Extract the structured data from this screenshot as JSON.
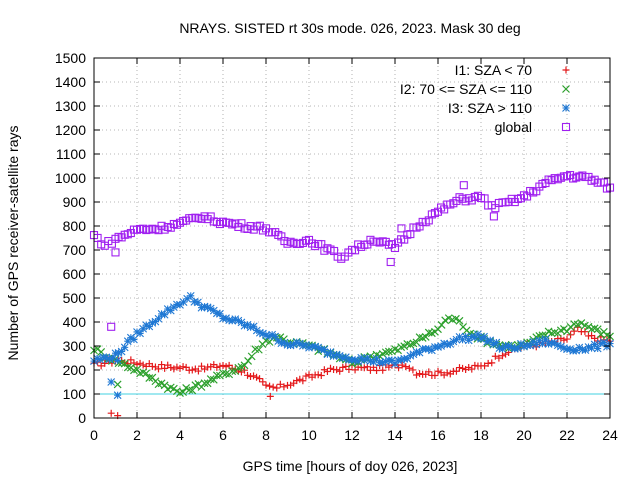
{
  "chart_data": {
    "type": "scatter",
    "title": "NRAYS. SISTED rt 30s mode. 026, 2023. Mask 30 deg",
    "xlabel": "GPS time [hours of doy 026, 2023]",
    "ylabel": "Number of GPS receiver-satellite rays",
    "xlim": [
      0,
      24
    ],
    "ylim": [
      0,
      1500
    ],
    "xticks": [
      0,
      2,
      4,
      6,
      8,
      10,
      12,
      14,
      16,
      18,
      20,
      22,
      24
    ],
    "yticks": [
      0,
      100,
      200,
      300,
      400,
      500,
      600,
      700,
      800,
      900,
      1000,
      1100,
      1200,
      1300,
      1400,
      1500
    ],
    "grid": true,
    "legend_position": "top-right",
    "reference_line": {
      "y": 100,
      "color": "#40d0e0"
    },
    "series": [
      {
        "name": "I1: SZA < 70",
        "marker": "plus",
        "color": "#e41a1c",
        "points": [
          [
            0,
            220
          ],
          [
            0.5,
            230
          ],
          [
            1,
            240
          ],
          [
            2,
            230
          ],
          [
            3,
            215
          ],
          [
            4,
            210
          ],
          [
            5,
            205
          ],
          [
            6,
            220
          ],
          [
            7,
            195
          ],
          [
            7.7,
            155
          ],
          [
            8,
            130
          ],
          [
            8.5,
            125
          ],
          [
            9,
            140
          ],
          [
            10,
            170
          ],
          [
            11,
            200
          ],
          [
            12,
            210
          ],
          [
            13,
            205
          ],
          [
            14,
            215
          ],
          [
            14.5,
            225
          ],
          [
            15,
            190
          ],
          [
            16,
            185
          ],
          [
            17,
            200
          ],
          [
            18,
            215
          ],
          [
            18.5,
            240
          ],
          [
            19,
            270
          ],
          [
            20,
            300
          ],
          [
            21,
            310
          ],
          [
            22,
            330
          ],
          [
            22.5,
            370
          ],
          [
            23,
            340
          ],
          [
            24,
            320
          ]
        ],
        "outliers": [
          [
            0.8,
            20
          ],
          [
            1.1,
            10
          ],
          [
            8.2,
            90
          ]
        ]
      },
      {
        "name": "I2: 70 <= SZA <= 110",
        "marker": "cross",
        "color": "#2ca02c",
        "points": [
          [
            0,
            290
          ],
          [
            0.5,
            260
          ],
          [
            1,
            240
          ],
          [
            2,
            200
          ],
          [
            3,
            150
          ],
          [
            4,
            105
          ],
          [
            5,
            140
          ],
          [
            6,
            180
          ],
          [
            7,
            220
          ],
          [
            7.5,
            280
          ],
          [
            8,
            320
          ],
          [
            8.5,
            340
          ],
          [
            9,
            320
          ],
          [
            10,
            300
          ],
          [
            11,
            270
          ],
          [
            12,
            230
          ],
          [
            13,
            260
          ],
          [
            14,
            280
          ],
          [
            15,
            320
          ],
          [
            16,
            370
          ],
          [
            16.5,
            420
          ],
          [
            17,
            400
          ],
          [
            17.5,
            360
          ],
          [
            18,
            330
          ],
          [
            19,
            300
          ],
          [
            20,
            300
          ],
          [
            21,
            350
          ],
          [
            22,
            370
          ],
          [
            22.5,
            400
          ],
          [
            23,
            380
          ],
          [
            24,
            340
          ]
        ],
        "outliers": [
          [
            1.1,
            140
          ]
        ]
      },
      {
        "name": "I3: SZA > 110",
        "marker": "star",
        "color": "#1f78d4",
        "points": [
          [
            0,
            240
          ],
          [
            1,
            260
          ],
          [
            2,
            350
          ],
          [
            3,
            420
          ],
          [
            4,
            480
          ],
          [
            4.5,
            500
          ],
          [
            5,
            470
          ],
          [
            6,
            420
          ],
          [
            7,
            390
          ],
          [
            8,
            350
          ],
          [
            9,
            310
          ],
          [
            10,
            300
          ],
          [
            11,
            270
          ],
          [
            12,
            250
          ],
          [
            13,
            240
          ],
          [
            14,
            230
          ],
          [
            15,
            270
          ],
          [
            16,
            300
          ],
          [
            17,
            330
          ],
          [
            18,
            340
          ],
          [
            19,
            290
          ],
          [
            20,
            300
          ],
          [
            21,
            320
          ],
          [
            22,
            290
          ],
          [
            23,
            290
          ],
          [
            24,
            310
          ]
        ],
        "outliers": [
          [
            0.8,
            150
          ],
          [
            1.1,
            95
          ],
          [
            1.1,
            240
          ]
        ]
      },
      {
        "name": "global",
        "marker": "square",
        "color": "#a020f0",
        "points": [
          [
            0,
            760
          ],
          [
            0.5,
            720
          ],
          [
            1,
            745
          ],
          [
            2,
            785
          ],
          [
            3,
            790
          ],
          [
            4,
            810
          ],
          [
            5,
            840
          ],
          [
            6,
            815
          ],
          [
            7,
            800
          ],
          [
            8,
            790
          ],
          [
            9,
            730
          ],
          [
            10,
            740
          ],
          [
            11,
            695
          ],
          [
            11.5,
            670
          ],
          [
            12,
            700
          ],
          [
            13,
            745
          ],
          [
            14,
            710
          ],
          [
            15,
            800
          ],
          [
            16,
            860
          ],
          [
            17,
            910
          ],
          [
            18,
            920
          ],
          [
            18.5,
            880
          ],
          [
            19,
            890
          ],
          [
            20,
            920
          ],
          [
            21,
            980
          ],
          [
            22,
            1010
          ],
          [
            23,
            1000
          ],
          [
            24,
            960
          ]
        ],
        "outliers": [
          [
            1,
            690
          ],
          [
            0.8,
            380
          ],
          [
            13.8,
            650
          ],
          [
            14.3,
            790
          ],
          [
            17.2,
            970
          ],
          [
            18.6,
            840
          ]
        ]
      }
    ]
  }
}
